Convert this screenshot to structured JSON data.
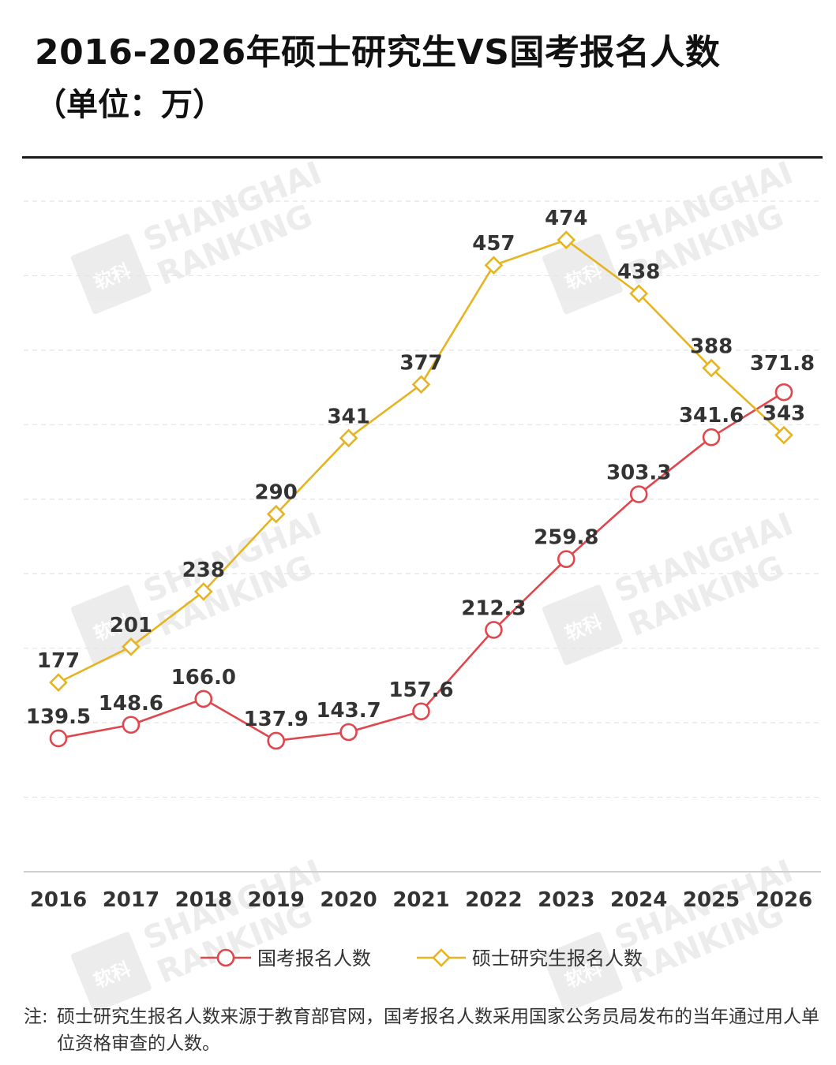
{
  "header": {
    "title": "2016-2026年硕士研究生VS国考报名人数",
    "subtitle": "（单位：万）"
  },
  "chart_data": {
    "type": "line",
    "categories": [
      "2016",
      "2017",
      "2018",
      "2019",
      "2020",
      "2021",
      "2022",
      "2023",
      "2024",
      "2025",
      "2026"
    ],
    "series": [
      {
        "name": "国考报名人数",
        "color": "#e0474c",
        "marker": "circle",
        "values": [
          139.5,
          148.6,
          166.0,
          137.9,
          143.7,
          157.6,
          212.3,
          259.8,
          303.3,
          341.6,
          371.8
        ],
        "labels": [
          "139.5",
          "148.6",
          "166.0",
          "137.9",
          "143.7",
          "157.6",
          "212.3",
          "259.8",
          "303.3",
          "341.6",
          "371.8"
        ]
      },
      {
        "name": "硕士研究生报名人数",
        "color": "#e5b420",
        "marker": "diamond",
        "values": [
          177,
          201,
          238,
          290,
          341,
          377,
          457,
          474,
          438,
          388,
          343
        ],
        "labels": [
          "177",
          "201",
          "238",
          "290",
          "341",
          "377",
          "457",
          "474",
          "438",
          "388",
          "343"
        ]
      }
    ],
    "ylim": [
      50,
      500
    ],
    "grid": true,
    "legend_position": "bottom"
  },
  "watermark": {
    "line1": "SHANGHAI",
    "line2": "RANKING",
    "logo_text": "软科"
  },
  "note": {
    "label": "注:",
    "text": "硕士研究生报名人数来源于教育部官网，国考报名人数采用国家公务员局发布的当年通过用人单位资格审查的人数。"
  }
}
